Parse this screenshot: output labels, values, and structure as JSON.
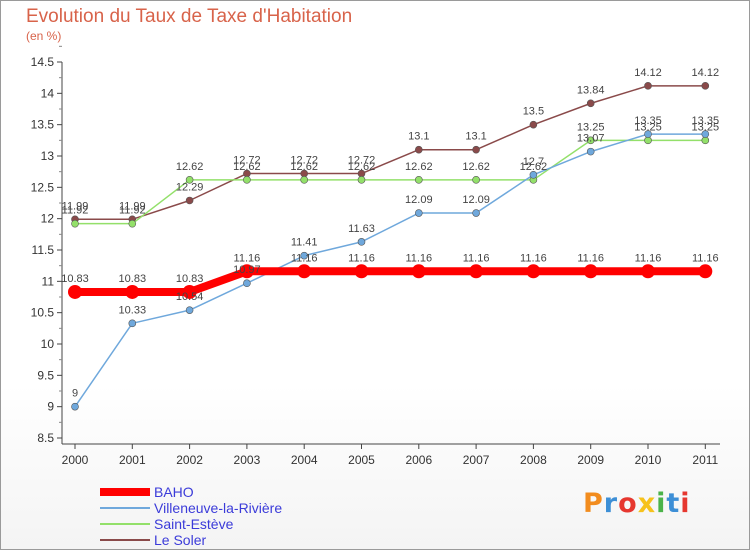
{
  "header": {
    "title": "Evolution du Taux de Taxe d'Habitation",
    "subtitle": "(en %)"
  },
  "logo": {
    "text": "Proxiti",
    "letters": [
      "P",
      "r",
      "o",
      "x",
      "i",
      "t",
      "i"
    ],
    "colors": [
      "#f28c1e",
      "#3d8fd6",
      "#e6372f",
      "#f6c21c",
      "#4bb34a",
      "#3d8fd6",
      "#e6372f"
    ]
  },
  "chart_data": {
    "type": "line",
    "title": "Evolution du Taux de Taxe d'Habitation",
    "subtitle": "(en %)",
    "xlabel": "",
    "ylabel": "",
    "categories": [
      "2000",
      "2001",
      "2002",
      "2003",
      "2004",
      "2005",
      "2006",
      "2007",
      "2008",
      "2009",
      "2010",
      "2011"
    ],
    "ylim": [
      8.5,
      14.5
    ],
    "yticks": [
      8.5,
      9,
      9.5,
      10,
      10.5,
      11,
      11.5,
      12,
      12.5,
      13,
      13.5,
      14,
      14.5
    ],
    "grid": false,
    "legend_position": "bottom-left",
    "series": [
      {
        "name": "BAHO",
        "color": "#ff0000",
        "values": [
          10.83,
          10.83,
          10.83,
          11.16,
          11.16,
          11.16,
          11.16,
          11.16,
          11.16,
          11.16,
          11.16,
          11.16
        ],
        "labels": [
          "10.83",
          "10.83",
          "10.83",
          "11.16",
          "11.16",
          "11.16",
          "11.16",
          "11.16",
          "11.16",
          "11.16",
          "11.16",
          "11.16"
        ]
      },
      {
        "name": "Villeneuve-la-Rivière",
        "color": "#6fa8dc",
        "values": [
          9.0,
          10.33,
          10.54,
          10.97,
          11.41,
          11.63,
          12.09,
          12.09,
          12.7,
          13.07,
          13.35,
          13.35
        ],
        "labels": [
          "9",
          "10.33",
          "10.54",
          "10.97",
          "11.41",
          "11.63",
          "12.09",
          "12.09",
          "12.7",
          "13.07",
          "13.35",
          "13.35"
        ]
      },
      {
        "name": "Saint-Estève",
        "color": "#93e06a",
        "values": [
          11.92,
          11.92,
          12.62,
          12.62,
          12.62,
          12.62,
          12.62,
          12.62,
          12.62,
          13.25,
          13.25,
          13.25
        ],
        "labels": [
          "11.92",
          "11.92",
          "12.62",
          "12.62",
          "12.62",
          "12.62",
          "12.62",
          "12.62",
          "12.62",
          "13.25",
          "13.25",
          "13.25"
        ]
      },
      {
        "name": "Le Soler",
        "color": "#8a4a4a",
        "values": [
          11.99,
          11.99,
          12.29,
          12.72,
          12.72,
          12.72,
          13.1,
          13.1,
          13.5,
          13.84,
          14.12,
          14.12
        ],
        "labels": [
          "11.99",
          "11.99",
          "12.29",
          "12.72",
          "12.72",
          "12.72",
          "13.1",
          "13.1",
          "13.5",
          "13.84",
          "14.12",
          "14.12"
        ]
      }
    ]
  }
}
